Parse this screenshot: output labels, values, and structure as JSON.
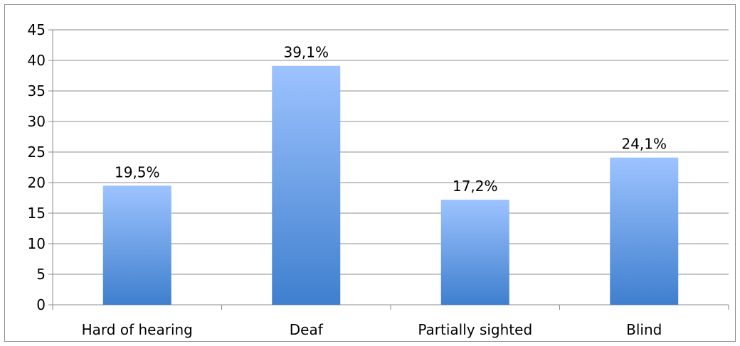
{
  "chart_data": {
    "type": "bar",
    "categories": [
      "Hard of hearing",
      "Deaf",
      "Partially sighted",
      "Blind"
    ],
    "values": [
      19.5,
      39.1,
      17.2,
      24.1
    ],
    "data_labels": [
      "19,5%",
      "39,1%",
      "17,2%",
      "24,1%"
    ],
    "ylim": [
      0,
      45
    ],
    "y_ticks": [
      "0",
      "5",
      "10",
      "15",
      "20",
      "25",
      "30",
      "35",
      "40",
      "45"
    ],
    "y_tick_values": [
      0,
      5,
      10,
      15,
      20,
      25,
      30,
      35,
      40,
      45
    ],
    "grid": true,
    "legend": "none",
    "bar_color_top": "#9dc3ff",
    "bar_color_bottom": "#3f7fce",
    "grid_color": "#8c8c8c"
  }
}
